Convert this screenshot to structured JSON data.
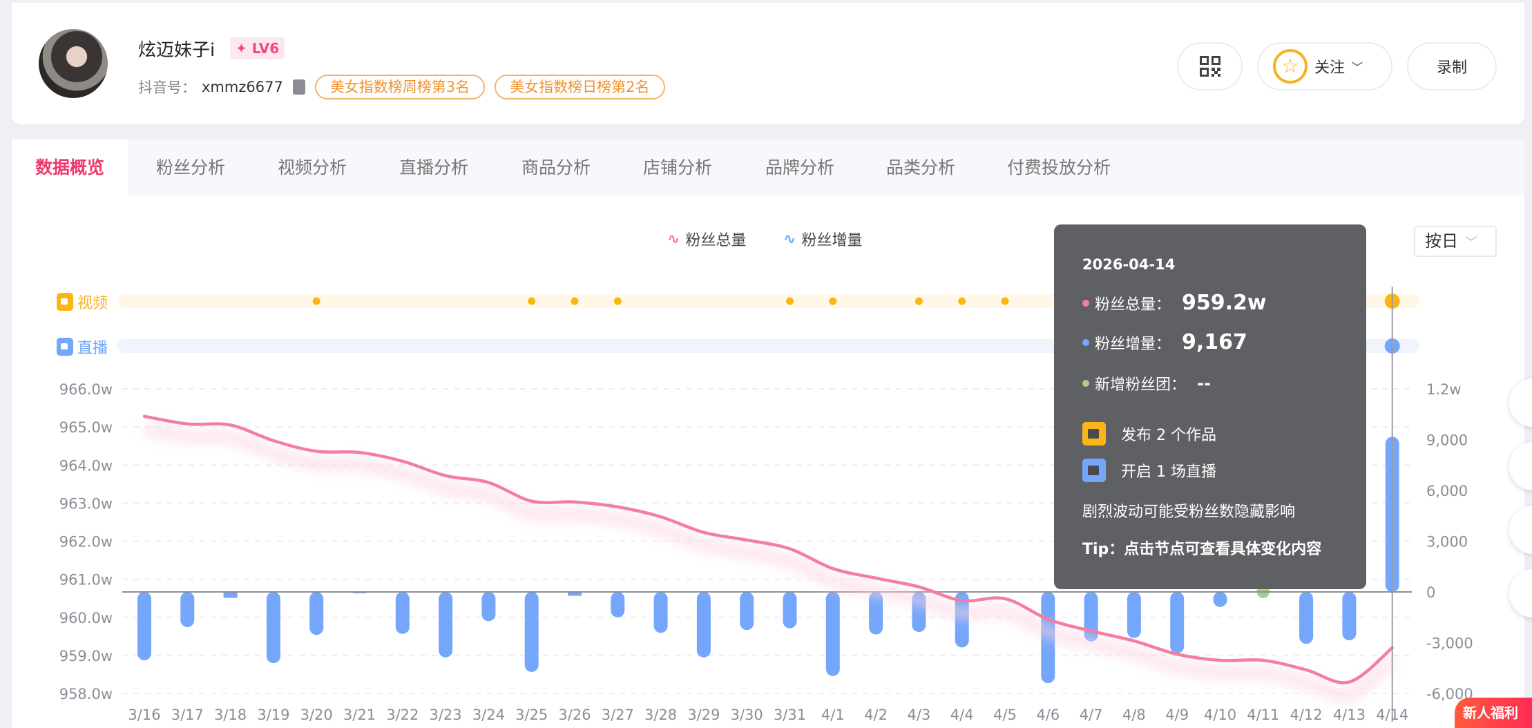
{
  "profile": {
    "name": "炫迈妹子i",
    "level": "LV6",
    "id_label": "抖音号：",
    "id_value": "xmmz6677",
    "ranks": [
      "美女指数榜周榜第3名",
      "美女指数榜日榜第2名"
    ]
  },
  "actions": {
    "follow": "关注",
    "record": "录制"
  },
  "tabs": [
    "数据概览",
    "粉丝分析",
    "视频分析",
    "直播分析",
    "商品分析",
    "店铺分析",
    "品牌分析",
    "品类分析",
    "付费投放分析"
  ],
  "select": {
    "value": "按日"
  },
  "rows": {
    "video": "视频",
    "live": "直播"
  },
  "tooltip": {
    "date": "2026-04-14",
    "total_label": "粉丝总量：",
    "total_value": "959.2w",
    "inc_label": "粉丝增量：",
    "inc_value": "9,167",
    "club_label": "新增粉丝团：",
    "club_value": "--",
    "video_text": "发布 2 个作品",
    "live_text": "开启 1 场直播",
    "note": "剧烈波动可能受粉丝数隐藏影响",
    "tip": "Tip：点击节点可查看具体变化内容"
  },
  "floating": {
    "welfare": "新人福利"
  },
  "colors": {
    "accent": "#f0386b",
    "total": "#f47ea0",
    "increment": "#74a7fb",
    "video": "#fbb616",
    "live": "#74a7fb",
    "club": "#a8d08d"
  },
  "chart_data": {
    "type": "bar+line",
    "legend": [
      "粉丝总量",
      "粉丝增量"
    ],
    "legend_position": "top-center",
    "categories": [
      "3/16",
      "3/17",
      "3/18",
      "3/19",
      "3/20",
      "3/21",
      "3/22",
      "3/23",
      "3/24",
      "3/25",
      "3/26",
      "3/27",
      "3/28",
      "3/29",
      "3/30",
      "3/31",
      "4/1",
      "4/2",
      "4/3",
      "4/4",
      "4/5",
      "4/6",
      "4/7",
      "4/8",
      "4/9",
      "4/10",
      "4/11",
      "4/12",
      "4/13",
      "4/14"
    ],
    "series": [
      {
        "name": "粉丝总量",
        "type": "line",
        "axis": "left",
        "unit": "w",
        "values": [
          965.28,
          965.08,
          965.05,
          964.64,
          964.36,
          964.33,
          964.1,
          963.72,
          963.54,
          963.05,
          963.03,
          962.9,
          962.64,
          962.23,
          962.03,
          961.8,
          961.28,
          961.03,
          960.8,
          960.44,
          960.49,
          959.95,
          959.64,
          959.38,
          959.03,
          958.87,
          958.87,
          958.62,
          958.3,
          959.2
        ]
      },
      {
        "name": "粉丝增量",
        "type": "bar",
        "axis": "right",
        "values": [
          -4040,
          -2080,
          -350,
          -4210,
          -2540,
          -50,
          -2480,
          -3870,
          -1730,
          -4730,
          -230,
          -1500,
          -2420,
          -3870,
          -2250,
          -2150,
          -4970,
          -2510,
          -2370,
          -3280,
          0,
          -5390,
          -2930,
          -2720,
          -3630,
          -890,
          100,
          -3070,
          -2860,
          9167
        ]
      }
    ],
    "left_axis": {
      "ticks": [
        "966.0w",
        "965.0w",
        "964.0w",
        "963.0w",
        "962.0w",
        "961.0w",
        "960.0w",
        "959.0w",
        "958.0w"
      ],
      "range": [
        958,
        966
      ]
    },
    "right_axis": {
      "ticks": [
        "1.2w",
        "9,000",
        "6,000",
        "3,000",
        "0",
        "-3,000",
        "-6,000"
      ],
      "range": [
        -6000,
        12000
      ]
    },
    "video_event_dates": [
      "3/20",
      "3/25",
      "3/26",
      "3/27",
      "3/31",
      "4/1",
      "4/3",
      "4/4",
      "4/5",
      "4/11",
      "4/13",
      "4/14"
    ],
    "live_event_dates": [
      "4/11",
      "4/14"
    ],
    "club_event_dates": [
      "4/11"
    ],
    "grid": true,
    "highlight": "4/14"
  }
}
